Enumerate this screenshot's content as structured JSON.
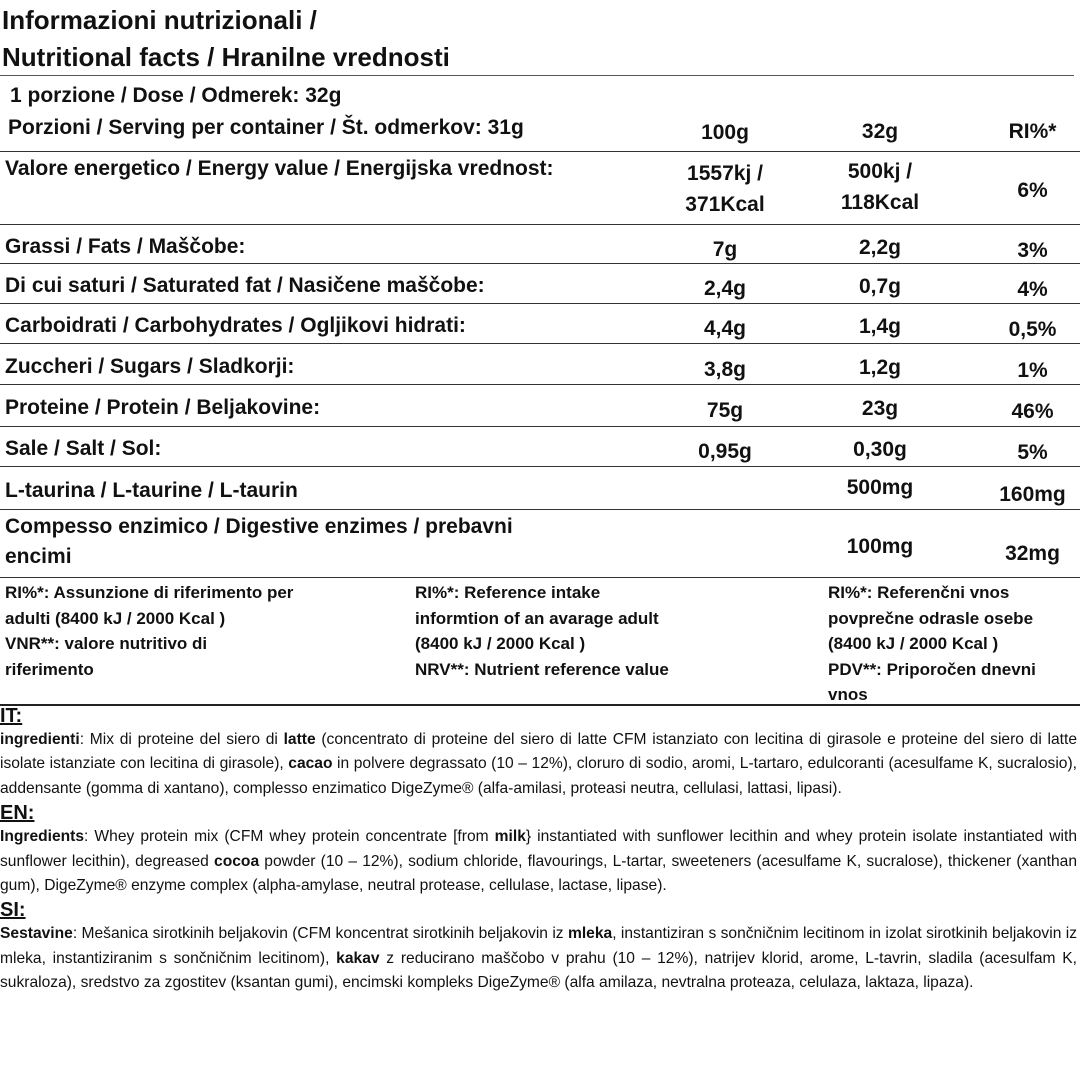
{
  "title": {
    "line1": "Informazioni nutrizionali /",
    "line2": "Nutritional facts / Hranilne vrednosti"
  },
  "header": {
    "dose": "1 porzione / Dose / Odmerek:   32g",
    "servings": "Porzioni / Serving per container / Št. odmerkov: 31g",
    "col_100g": "100g",
    "col_32g": "32g",
    "col_ri": "RI%*"
  },
  "rows": [
    {
      "label": "Valore energetico / Energy value / Energijska vrednost:",
      "v100": "1557kj / 371Kcal",
      "v32": "500kj / 118Kcal",
      "ri": "6%"
    },
    {
      "label": "Grassi / Fats / Maščobe:",
      "v100": "7g",
      "v32": "2,2g",
      "ri": "3%"
    },
    {
      "label": "Di cui saturi / Saturated fat / Nasičene maščobe:",
      "v100": "2,4g",
      "v32": "0,7g",
      "ri": "4%"
    },
    {
      "label": "Carboidrati / Carbohydrates / Ogljikovi hidrati:",
      "v100": "4,4g",
      "v32": "1,4g",
      "ri": "0,5%"
    },
    {
      "label": "Zuccheri / Sugars / Sladkorji:",
      "v100": "3,8g",
      "v32": "1,2g",
      "ri": "1%"
    },
    {
      "label": "Proteine / Protein / Beljakovine:",
      "v100": "75g",
      "v32": "23g",
      "ri": "46%"
    },
    {
      "label": "Sale / Salt / Sol:",
      "v100": "0,95g",
      "v32": "0,30g",
      "ri": "5%"
    },
    {
      "label": "L-taurina / L-taurine / L-taurin",
      "v100": "",
      "v32": "500mg",
      "ri": "160mg"
    },
    {
      "label": "Compesso enzimico / Digestive enzimes / prebavni encimi",
      "v100": "",
      "v32": "100mg",
      "ri": "32mg"
    }
  ],
  "footnotes": {
    "it": "RI%*: Assunzione di riferimento per adulti  (8400 kJ / 2000 Kcal ) VNR**: valore nutritivo di riferimento",
    "it_a": "RI%*: Assunzione di riferimento per adulti  (8400 kJ / 2000 Kcal )",
    "it_b": "VNR**: valore nutritivo di riferimento",
    "en_a": "RI%*: Reference intake informtion of an avarage adult (8400 kJ / 2000 Kcal )",
    "en_b": "NRV**: Nutrient reference value",
    "si_a": "RI%*: Referenčni vnos povprečne odrasle osebe (8400 kJ / 2000 Kcal )",
    "si_b": "PDV**: Priporočen dnevni vnos"
  },
  "ingredients": [
    {
      "heading": "IT:",
      "segments": [
        {
          "t": "ingredienti",
          "b": true
        },
        {
          "t": ": Mix di proteine del siero di "
        },
        {
          "t": "latte",
          "b": true
        },
        {
          "t": " (concentrato di proteine del siero di latte CFM istanziato con lecitina di girasole e proteine del siero di latte isolate istanziate con lecitina di girasole), "
        },
        {
          "t": "cacao",
          "b": true
        },
        {
          "t": " in polvere degrassato (10 – 12%), cloruro di sodio, aromi, L-tartaro, edulcoranti (acesulfame K, sucralosio), addensante (gomma di xantano), complesso enzimatico DigeZyme® (alfa-amilasi, proteasi neutra, cellulasi, lattasi, lipasi)."
        }
      ]
    },
    {
      "heading": "EN:",
      "segments": [
        {
          "t": "Ingredients",
          "b": true
        },
        {
          "t": ": Whey protein mix (CFM whey protein concentrate [from "
        },
        {
          "t": "milk",
          "b": true
        },
        {
          "t": "} instantiated with sunflower lecithin and whey protein isolate instantiated with sunflower lecithin), degreased "
        },
        {
          "t": "cocoa",
          "b": true
        },
        {
          "t": " powder (10 – 12%), sodium chloride, flavourings, L-tartar, sweeteners (acesulfame K, sucralose), thickener (xanthan gum), DigeZyme® enzyme complex (alpha-amylase, neutral protease, cellulase, lactase, lipase)."
        }
      ]
    },
    {
      "heading": "SI:",
      "segments": [
        {
          "t": "Sestavine",
          "b": true
        },
        {
          "t": ": Mešanica sirotkinih beljakovin (CFM koncentrat sirotkinih beljakovin iz "
        },
        {
          "t": "mleka",
          "b": true
        },
        {
          "t": ", instantiziran s sončničnim lecitinom in izolat sirotkinih beljakovin iz mleka, instantiziranim s sončničnim lecitinom), "
        },
        {
          "t": "kakav",
          "b": true
        },
        {
          "t": " z reducirano maščobo v prahu (10 – 12%), natrijev klorid, arome, L-tavrin, sladila (acesulfam K, sukraloza), sredstvo za zgostitev (ksantan gumi), encimski kompleks DigeZyme® (alfa amilaza, nevtralna proteaza, celulaza, laktaza, lipaza)."
        }
      ]
    }
  ]
}
